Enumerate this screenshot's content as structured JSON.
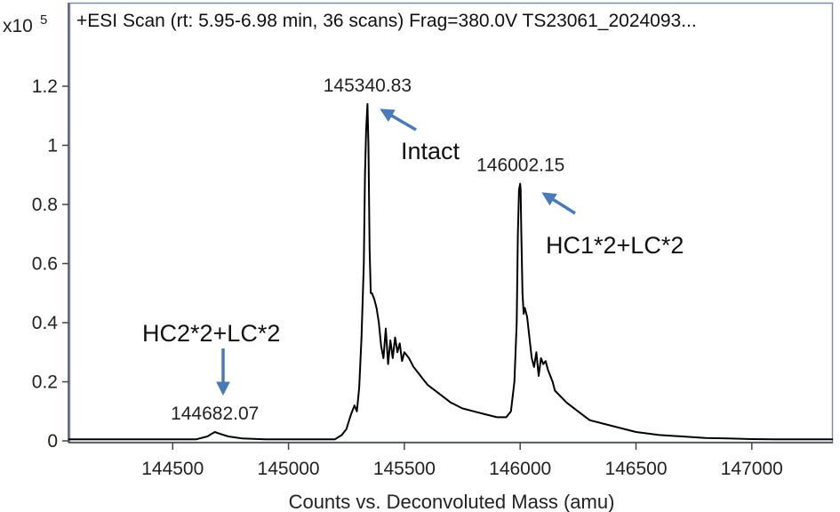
{
  "scan_title": "+ESI Scan (rt: 5.95-6.98 min, 36 scans) Frag=380.0V TS23061_2024093...",
  "y_exponent_prefix": "x10",
  "y_exponent": "5",
  "colors": {
    "trace": "#000000",
    "arrow": "#4a7ab8",
    "frame": "#7a8fb0",
    "axis": "#444444"
  },
  "chart_data": {
    "type": "line",
    "title": "+ESI Scan (rt: 5.95-6.98 min, 36 scans) Frag=380.0V TS23061_2024093...",
    "xlabel": "Counts vs. Deconvoluted Mass (amu)",
    "ylabel": "",
    "y_scale_label": "x10^5",
    "xlim": [
      144050,
      147350
    ],
    "ylim": [
      0,
      1.32
    ],
    "x_ticks": [
      144500,
      145000,
      145500,
      146000,
      146500,
      147000
    ],
    "x_tick_labels": [
      "144500",
      "145000",
      "145500",
      "146000",
      "146500",
      "147000"
    ],
    "y_ticks": [
      0,
      0.2,
      0.4,
      0.6,
      0.8,
      1,
      1.2
    ],
    "y_tick_labels": [
      "0",
      "0.2",
      "0.4",
      "0.6",
      "0.8",
      "1",
      "1.2"
    ],
    "grid": false,
    "legend": "none",
    "series": [
      {
        "x": [
          144050,
          144400,
          144600,
          144650,
          144670,
          144682.07,
          144700,
          144740,
          144800,
          144900,
          145000,
          145100,
          145200,
          145230,
          145250,
          145270,
          145285,
          145295,
          145305,
          145315,
          145325,
          145330,
          145335,
          145340.83,
          145345,
          145350,
          145355,
          145360,
          145370,
          145380,
          145390,
          145400,
          145410,
          145420,
          145430,
          145440,
          145450,
          145460,
          145470,
          145480,
          145490,
          145500,
          145520,
          145540,
          145560,
          145580,
          145600,
          145650,
          145700,
          145750,
          145800,
          145850,
          145900,
          145940,
          145960,
          145975,
          145985,
          145990,
          145995,
          146000,
          146002.15,
          146005,
          146010,
          146015,
          146020,
          146030,
          146040,
          146050,
          146060,
          146070,
          146080,
          146090,
          146100,
          146110,
          146120,
          146130,
          146140,
          146150,
          146200,
          146250,
          146300,
          146400,
          146500,
          146600,
          146700,
          146800,
          146900,
          147000,
          147100,
          147200,
          147350
        ],
        "y": [
          0.005,
          0.005,
          0.005,
          0.015,
          0.025,
          0.03,
          0.025,
          0.015,
          0.008,
          0.005,
          0.005,
          0.005,
          0.005,
          0.02,
          0.04,
          0.09,
          0.12,
          0.1,
          0.18,
          0.35,
          0.6,
          0.9,
          1.05,
          1.14,
          1.0,
          0.65,
          0.5,
          0.5,
          0.48,
          0.45,
          0.4,
          0.32,
          0.28,
          0.38,
          0.26,
          0.34,
          0.28,
          0.35,
          0.3,
          0.33,
          0.27,
          0.3,
          0.28,
          0.25,
          0.23,
          0.21,
          0.19,
          0.16,
          0.13,
          0.11,
          0.1,
          0.09,
          0.08,
          0.08,
          0.1,
          0.2,
          0.4,
          0.7,
          0.85,
          0.87,
          0.85,
          0.7,
          0.5,
          0.43,
          0.45,
          0.42,
          0.35,
          0.28,
          0.25,
          0.3,
          0.22,
          0.28,
          0.26,
          0.27,
          0.24,
          0.22,
          0.2,
          0.17,
          0.13,
          0.1,
          0.07,
          0.05,
          0.03,
          0.02,
          0.015,
          0.01,
          0.008,
          0.006,
          0.005,
          0.005,
          0.005
        ]
      }
    ],
    "peak_labels": [
      {
        "x": 144682.07,
        "y": 0.03,
        "text": "144682.07"
      },
      {
        "x": 145340.83,
        "y": 1.14,
        "text": "145340.83"
      },
      {
        "x": 146002.15,
        "y": 0.87,
        "text": "146002.15"
      }
    ],
    "annotations": [
      {
        "text": "HC2*2+LC*2",
        "target_x": 144682.07
      },
      {
        "text": "Intact",
        "target_x": 145340.83
      },
      {
        "text": "HC1*2+LC*2",
        "target_x": 146002.15
      }
    ]
  }
}
